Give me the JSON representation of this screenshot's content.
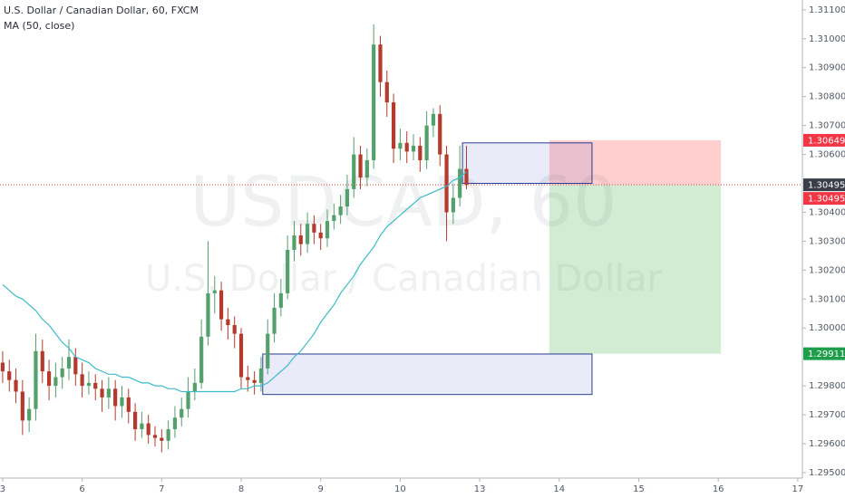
{
  "chart_data": {
    "type": "candlestick",
    "title": "U.S. Dollar / Canadian Dollar, 60, FXCM",
    "watermark": {
      "symbol": "USDCAD, 60",
      "name": "U.S. Dollar / Canadian Dollar"
    },
    "x": [
      0,
      2,
      4,
      6,
      8,
      10,
      12,
      14,
      16,
      18,
      20,
      22,
      24,
      26,
      28,
      30,
      32,
      34,
      36,
      38,
      40,
      42,
      44,
      46,
      48,
      50,
      52,
      54,
      56,
      58,
      60,
      62,
      64,
      66,
      68,
      70,
      72,
      74,
      76,
      78,
      80,
      82,
      84,
      86,
      88,
      90,
      92,
      94,
      96,
      98,
      100,
      102,
      104,
      106,
      108,
      110,
      112,
      114,
      116,
      118,
      120,
      122,
      124,
      126,
      128,
      130,
      132,
      134,
      136,
      138,
      140
    ],
    "open": [
      1.2988,
      1.2985,
      1.2982,
      1.2978,
      1.2968,
      1.2972,
      1.2992,
      1.2985,
      1.298,
      1.2983,
      1.2986,
      1.299,
      1.2984,
      1.298,
      1.2981,
      1.2979,
      1.2976,
      1.2979,
      1.2973,
      1.2976,
      1.2971,
      1.2965,
      1.2967,
      1.2963,
      1.2962,
      1.2961,
      1.2965,
      1.2969,
      1.2972,
      1.2978,
      1.2981,
      1.2997,
      1.3012,
      1.3013,
      1.3003,
      1.3001,
      1.2998,
      1.2983,
      1.2982,
      1.2981,
      1.2986,
      1.2998,
      1.3007,
      1.3012,
      1.3027,
      1.3032,
      1.3029,
      1.3036,
      1.3033,
      1.3031,
      1.3037,
      1.3039,
      1.3042,
      1.3048,
      1.306,
      1.3052,
      1.3058,
      1.3098,
      1.3085,
      1.3078,
      1.3062,
      1.3064,
      1.3061,
      1.3063,
      1.3058,
      1.307,
      1.3074,
      1.306,
      1.304,
      1.3045,
      1.3055
    ],
    "high": [
      1.2992,
      1.2989,
      1.2986,
      1.2982,
      1.2976,
      1.2998,
      1.2996,
      1.2989,
      1.2988,
      1.299,
      1.2996,
      1.2993,
      1.2988,
      1.2985,
      1.2984,
      1.2982,
      1.2983,
      1.2982,
      1.298,
      1.2979,
      1.2974,
      1.2971,
      1.297,
      1.2966,
      1.2965,
      1.2968,
      1.2973,
      1.2976,
      1.2983,
      1.2986,
      1.3003,
      1.303,
      1.3018,
      1.3016,
      1.3007,
      1.3004,
      1.3,
      1.2987,
      1.2985,
      1.299,
      1.3003,
      1.3012,
      1.3017,
      1.3032,
      1.3037,
      1.3036,
      1.304,
      1.3039,
      1.3036,
      1.3041,
      1.3043,
      1.3046,
      1.3053,
      1.3066,
      1.3063,
      1.3062,
      1.3105,
      1.3101,
      1.3089,
      1.3081,
      1.3069,
      1.3068,
      1.3067,
      1.3066,
      1.3075,
      1.3076,
      1.3077,
      1.3063,
      1.305,
      1.3063,
      1.3063
    ],
    "low": [
      1.2981,
      1.2978,
      1.2974,
      1.2963,
      1.2964,
      1.2968,
      1.2981,
      1.2975,
      1.2976,
      1.2979,
      1.2982,
      1.298,
      1.2976,
      1.2977,
      1.2975,
      1.2971,
      1.2972,
      1.2968,
      1.2969,
      1.2967,
      1.2961,
      1.2962,
      1.296,
      1.2959,
      1.2957,
      1.2958,
      1.2962,
      1.2966,
      1.2969,
      1.2975,
      1.2979,
      1.2994,
      1.3005,
      1.2999,
      1.2996,
      1.2993,
      1.2979,
      1.2978,
      1.2977,
      1.2978,
      1.2984,
      1.2995,
      1.3004,
      1.301,
      1.3023,
      1.3025,
      1.3026,
      1.3029,
      1.3027,
      1.3028,
      1.3034,
      1.3036,
      1.3039,
      1.3045,
      1.3048,
      1.3049,
      1.3055,
      1.308,
      1.3073,
      1.3057,
      1.3058,
      1.3057,
      1.3058,
      1.3054,
      1.3055,
      1.3066,
      1.3056,
      1.303,
      1.3036,
      1.3042,
      1.3048
    ],
    "close": [
      1.2985,
      1.2982,
      1.2978,
      1.2968,
      1.2972,
      1.2992,
      1.2985,
      1.298,
      1.2983,
      1.2986,
      1.299,
      1.2984,
      1.298,
      1.2981,
      1.2979,
      1.2976,
      1.2979,
      1.2973,
      1.2976,
      1.2971,
      1.2965,
      1.2967,
      1.2963,
      1.2962,
      1.2961,
      1.2965,
      1.2969,
      1.2972,
      1.2978,
      1.2981,
      1.2997,
      1.3012,
      1.3013,
      1.3003,
      1.3001,
      1.2998,
      1.2983,
      1.2982,
      1.2981,
      1.2986,
      1.2998,
      1.3007,
      1.3012,
      1.3027,
      1.3032,
      1.3029,
      1.3036,
      1.3033,
      1.3031,
      1.3037,
      1.3039,
      1.3042,
      1.3048,
      1.306,
      1.3052,
      1.3058,
      1.3098,
      1.3085,
      1.3078,
      1.3062,
      1.3064,
      1.3061,
      1.3063,
      1.3058,
      1.307,
      1.3074,
      1.306,
      1.304,
      1.3045,
      1.3055,
      1.30495
    ],
    "up_color": "#53a06c",
    "down_color": "#b53a2e",
    "ma": {
      "name": "MA (50, close)",
      "color": "#3cbcc8",
      "values": [
        1.3015,
        1.3013,
        1.3011,
        1.301,
        1.3008,
        1.3006,
        1.3003,
        1.3001,
        1.2998,
        1.2995,
        1.2993,
        1.299,
        1.2989,
        1.2988,
        1.2986,
        1.2985,
        1.2984,
        1.2984,
        1.2983,
        1.2983,
        1.2982,
        1.2981,
        1.2981,
        1.298,
        1.298,
        1.2979,
        1.2979,
        1.2978,
        1.2978,
        1.2978,
        1.2978,
        1.2978,
        1.2978,
        1.2978,
        1.2978,
        1.2978,
        1.2979,
        1.2979,
        1.298,
        1.298,
        1.2981,
        1.2983,
        1.2985,
        1.2987,
        1.299,
        1.2992,
        1.2995,
        1.2998,
        1.3002,
        1.3005,
        1.3008,
        1.3012,
        1.3015,
        1.3018,
        1.3022,
        1.3025,
        1.3028,
        1.3032,
        1.3035,
        1.3037,
        1.3039,
        1.3041,
        1.3043,
        1.3045,
        1.3046,
        1.3047,
        1.3048,
        1.3049,
        1.3051,
        1.3052,
        1.3054
      ]
    },
    "xlim": [
      -0.8,
      241.4
    ],
    "xticks": [
      {
        "value": 0,
        "label": "3"
      },
      {
        "value": 24,
        "label": "6"
      },
      {
        "value": 48,
        "label": "7"
      },
      {
        "value": 72,
        "label": "8"
      },
      {
        "value": 96,
        "label": "9"
      },
      {
        "value": 120,
        "label": "10"
      },
      {
        "value": 144,
        "label": "13"
      },
      {
        "value": 168,
        "label": "14"
      },
      {
        "value": 192,
        "label": "15"
      },
      {
        "value": 216,
        "label": "16"
      },
      {
        "value": 240,
        "label": "17"
      }
    ],
    "ylim": [
      1.29481,
      1.31134
    ],
    "yticks": [
      {
        "value": 1.311,
        "label": "1.31100"
      },
      {
        "value": 1.31,
        "label": "1.31000"
      },
      {
        "value": 1.309,
        "label": "1.30900"
      },
      {
        "value": 1.308,
        "label": "1.30800"
      },
      {
        "value": 1.307,
        "label": "1.30700"
      },
      {
        "value": 1.306,
        "label": "1.30600"
      },
      {
        "value": 1.304,
        "label": "1.30400"
      },
      {
        "value": 1.303,
        "label": "1.30300"
      },
      {
        "value": 1.302,
        "label": "1.30200"
      },
      {
        "value": 1.301,
        "label": "1.30100"
      },
      {
        "value": 1.3,
        "label": "1.30000"
      },
      {
        "value": 1.298,
        "label": "1.29800"
      },
      {
        "value": 1.297,
        "label": "1.29700"
      },
      {
        "value": 1.296,
        "label": "1.29600"
      },
      {
        "value": 1.295,
        "label": "1.29500"
      }
    ],
    "price_labels": [
      {
        "value": 1.30649,
        "color": "#f23645"
      },
      {
        "value": 1.30495,
        "color": "#3a3e48"
      },
      {
        "value": 1.30495,
        "color": "#f23645"
      },
      {
        "value": 1.29911,
        "color": "#1e9e4a"
      }
    ],
    "drawings": [
      {
        "x": [
          138.8,
          177.9
        ],
        "y": [
          1.3064,
          1.305
        ]
      },
      {
        "x": [
          78.5,
          177.9
        ],
        "y": [
          1.2991,
          1.2977
        ]
      }
    ],
    "position": {
      "x": [
        165,
        216.8
      ],
      "entry": 1.30495,
      "stop": 1.30649,
      "target": 1.29911
    }
  }
}
